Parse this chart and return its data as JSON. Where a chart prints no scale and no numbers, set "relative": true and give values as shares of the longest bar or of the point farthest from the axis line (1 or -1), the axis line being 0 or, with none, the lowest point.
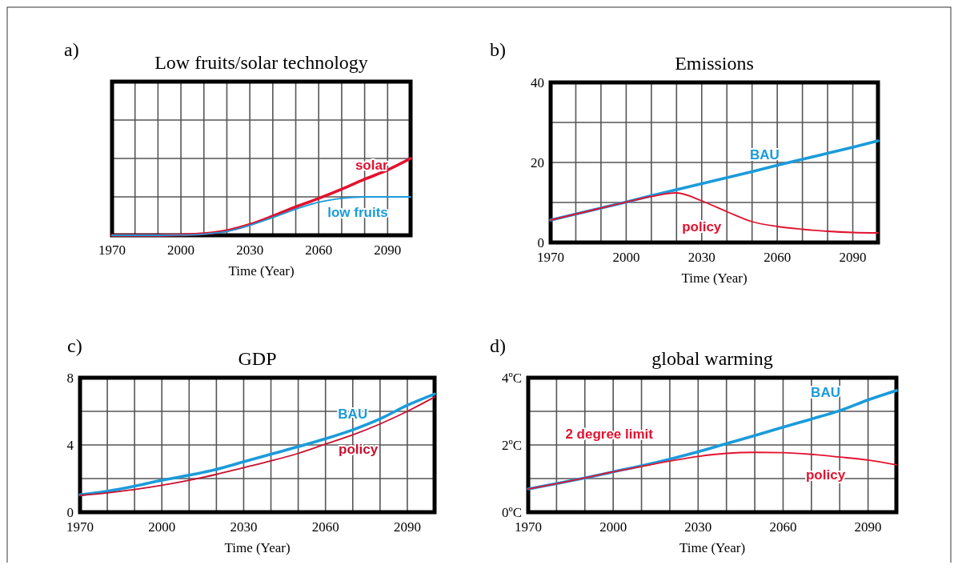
{
  "chart_data": [
    {
      "type": "line",
      "title": "Low fruits/solar technology",
      "xlabel": "Time (Year)",
      "relative": true,
      "grid": true,
      "legend": false,
      "marker": "none",
      "line_style": "solid",
      "tick_labels": "x",
      "annotations": [
        "a)"
      ],
      "x": [
        1970,
        1980,
        1990,
        2000,
        2010,
        2020,
        2030,
        2040,
        2050,
        2060,
        2070,
        2080,
        2090,
        2100
      ],
      "xlim": [
        1970,
        2100
      ],
      "xticks": [
        1970,
        {
          "value": 1980,
          "label": null
        },
        {
          "value": 1990,
          "label": null
        },
        2000,
        {
          "value": 2010,
          "label": null
        },
        {
          "value": 2020,
          "label": null
        },
        2030,
        {
          "value": 2040,
          "label": null
        },
        {
          "value": 2050,
          "label": null
        },
        2060,
        {
          "value": 2070,
          "label": null
        },
        {
          "value": 2080,
          "label": null
        },
        2090,
        {
          "value": 2100,
          "label": null
        }
      ],
      "series": [
        {
          "name": "solar",
          "color": "#e2122f",
          "values": [
            0,
            0,
            0,
            0.005,
            0.02,
            0.06,
            0.14,
            0.25,
            0.37,
            0.48,
            0.6,
            0.73,
            0.85,
            1
          ]
        },
        {
          "name": "low fruits",
          "color": "#1a9bdb",
          "values": [
            0,
            0,
            0,
            0.003,
            0.015,
            0.05,
            0.13,
            0.23,
            0.34,
            0.43,
            0.48,
            0.5,
            0.5,
            0.5
          ]
        }
      ]
    },
    {
      "type": "line",
      "title": "Emissions",
      "xlabel": "Time (Year)",
      "grid": true,
      "legend": false,
      "marker": "none",
      "line_style": "solid",
      "annotations": [
        "b)"
      ],
      "x": [
        1970,
        1980,
        1990,
        2000,
        2010,
        2020,
        2030,
        2040,
        2050,
        2060,
        2070,
        2080,
        2090,
        2100
      ],
      "xlim": [
        1970,
        2100
      ],
      "xticks": [
        1970,
        {
          "value": 1980,
          "label": null
        },
        {
          "value": 1990,
          "label": null
        },
        2000,
        {
          "value": 2010,
          "label": null
        },
        {
          "value": 2020,
          "label": null
        },
        2030,
        {
          "value": 2040,
          "label": null
        },
        {
          "value": 2050,
          "label": null
        },
        2060,
        {
          "value": 2070,
          "label": null
        },
        {
          "value": 2080,
          "label": null
        },
        2090,
        {
          "value": 2100,
          "label": null
        }
      ],
      "ylim": [
        0,
        40
      ],
      "yticks": [
        0,
        {
          "value": 10,
          "label": null
        },
        20,
        {
          "value": 30,
          "label": null
        },
        40
      ],
      "series": [
        {
          "name": "BAU",
          "color": "#1a9bdb",
          "values": [
            5.6,
            7.1,
            8.6,
            10.1,
            11.7,
            13.2,
            14.7,
            16.2,
            17.7,
            19.3,
            20.8,
            22.3,
            23.8,
            25.4
          ]
        },
        {
          "name": "policy",
          "color": "#e2122f",
          "values": [
            5.6,
            7.1,
            8.6,
            10.1,
            11.5,
            12.4,
            10.4,
            7.7,
            5.2,
            4.0,
            3.3,
            2.8,
            2.5,
            2.4
          ]
        }
      ]
    },
    {
      "type": "line",
      "title": "GDP",
      "xlabel": "Time (Year)",
      "grid": true,
      "legend": false,
      "marker": "none",
      "line_style": "solid",
      "annotations": [
        "c)"
      ],
      "x": [
        1970,
        1980,
        1990,
        2000,
        2010,
        2020,
        2030,
        2040,
        2050,
        2060,
        2070,
        2080,
        2090,
        2100
      ],
      "xlim": [
        1970,
        2100
      ],
      "xticks": [
        1970,
        {
          "value": 1980,
          "label": null
        },
        {
          "value": 1990,
          "label": null
        },
        2000,
        {
          "value": 2010,
          "label": null
        },
        {
          "value": 2020,
          "label": null
        },
        2030,
        {
          "value": 2040,
          "label": null
        },
        {
          "value": 2050,
          "label": null
        },
        2060,
        {
          "value": 2070,
          "label": null
        },
        {
          "value": 2080,
          "label": null
        },
        2090,
        {
          "value": 2100,
          "label": null
        }
      ],
      "ylim": [
        0,
        8
      ],
      "yticks": [
        0,
        {
          "value": 2,
          "label": null
        },
        4,
        {
          "value": 6,
          "label": null
        },
        8
      ],
      "series": [
        {
          "name": "BAU",
          "color": "#1a9bdb",
          "values": [
            1.03,
            1.25,
            1.55,
            1.9,
            2.2,
            2.55,
            3.0,
            3.45,
            3.9,
            4.37,
            4.9,
            5.55,
            6.36,
            7.03
          ]
        },
        {
          "name": "policy",
          "color": "#c8102e",
          "values": [
            1.0,
            1.15,
            1.35,
            1.6,
            1.9,
            2.25,
            2.65,
            3.05,
            3.5,
            4.05,
            4.6,
            5.25,
            6.0,
            6.85
          ]
        }
      ]
    },
    {
      "type": "line",
      "title": "global warming",
      "xlabel": "Time (Year)",
      "grid": true,
      "legend": false,
      "marker": "none",
      "line_style": "solid",
      "annotations": [
        "d)",
        "2 degree limit"
      ],
      "x": [
        1970,
        1980,
        1990,
        2000,
        2010,
        2020,
        2030,
        2040,
        2050,
        2060,
        2070,
        2080,
        2090,
        2100
      ],
      "xlim": [
        1970,
        2100
      ],
      "xticks": [
        1970,
        {
          "value": 1980,
          "label": null
        },
        {
          "value": 1990,
          "label": null
        },
        2000,
        {
          "value": 2010,
          "label": null
        },
        {
          "value": 2020,
          "label": null
        },
        2030,
        {
          "value": 2040,
          "label": null
        },
        {
          "value": 2050,
          "label": null
        },
        2060,
        {
          "value": 2070,
          "label": null
        },
        {
          "value": 2080,
          "label": null
        },
        2090,
        {
          "value": 2100,
          "label": null
        }
      ],
      "ylim": [
        0,
        4
      ],
      "yticks": [
        {
          "value": 0,
          "label": "0ºC"
        },
        {
          "value": 1,
          "label": null
        },
        {
          "value": 2,
          "label": "2ºC"
        },
        {
          "value": 3,
          "label": null
        },
        {
          "value": 4,
          "label": "4ºC"
        }
      ],
      "series": [
        {
          "name": "BAU",
          "color": "#1a9bdb",
          "values": [
            0.69,
            0.85,
            1.02,
            1.2,
            1.38,
            1.58,
            1.8,
            2.04,
            2.28,
            2.53,
            2.77,
            3.02,
            3.34,
            3.62
          ]
        },
        {
          "name": "policy",
          "color": "#e2122f",
          "values": [
            0.69,
            0.85,
            1.02,
            1.2,
            1.36,
            1.52,
            1.66,
            1.75,
            1.78,
            1.77,
            1.72,
            1.64,
            1.55,
            1.41
          ]
        }
      ]
    }
  ]
}
